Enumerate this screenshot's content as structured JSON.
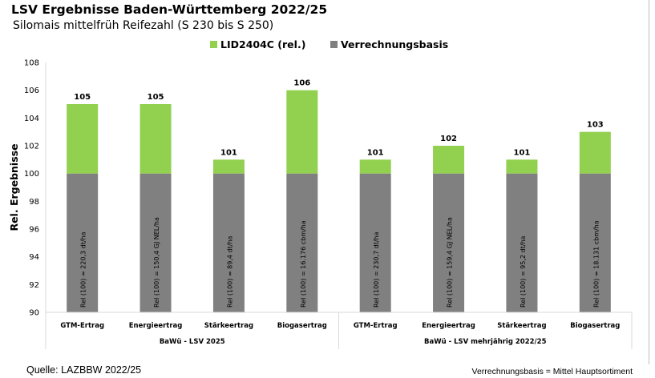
{
  "header": {
    "title": "LSV Ergebnisse Baden-Württemberg 2022/25",
    "subtitle": "Silomais mittelfrüh Reifezahl (S 230 bis S 250)"
  },
  "footer": {
    "source": "Quelle: LAZBBW 2022/25",
    "note": "Verrechnungsbasis = Mittel Hauptsortiment"
  },
  "colors": {
    "rel": "#92d050",
    "base": "#808080"
  },
  "chart_data": {
    "type": "bar",
    "stacked": true,
    "ylabel": "Rel. Ergebnisse",
    "ylim": [
      90,
      108
    ],
    "yticks": [
      90,
      92,
      94,
      96,
      98,
      100,
      102,
      104,
      106,
      108
    ],
    "grid": false,
    "legend_position": "top",
    "series": [
      {
        "name": "LID2404C (rel.)",
        "color": "#92d050"
      },
      {
        "name": "Verrechnungsbasis",
        "color": "#808080"
      }
    ],
    "groups": [
      {
        "label": "BaWü - LSV 2025",
        "categories": [
          "GTM-Ertrag",
          "Energieertrag",
          "Stärkeertrag",
          "Biogasertrag"
        ],
        "values": [
          105,
          105,
          101,
          106
        ],
        "base": [
          100,
          100,
          100,
          100
        ],
        "bar_labels": [
          "Rel (100) = 220,3 dt/ha",
          "Rel (100) = 150,4 GJ NEL/ha",
          "Rel (100) = 89,4 dt/ha",
          "Rel (100) = 16.176 cbm/ha"
        ]
      },
      {
        "label": "BaWü - LSV mehrjährig 2022/25",
        "categories": [
          "GTM-Ertrag",
          "Energieertrag",
          "Stärkeertrag",
          "Biogasertrag"
        ],
        "values": [
          101,
          102,
          101,
          103
        ],
        "base": [
          100,
          100,
          100,
          100
        ],
        "bar_labels": [
          "Rel (100) = 230,7 dt/ha",
          "Rel (100) = 159,4 GJ NEL/ha",
          "Rel (100) = 95,2 dt/ha",
          "Rel (100) = 18.131 cbm/ha"
        ]
      }
    ]
  }
}
